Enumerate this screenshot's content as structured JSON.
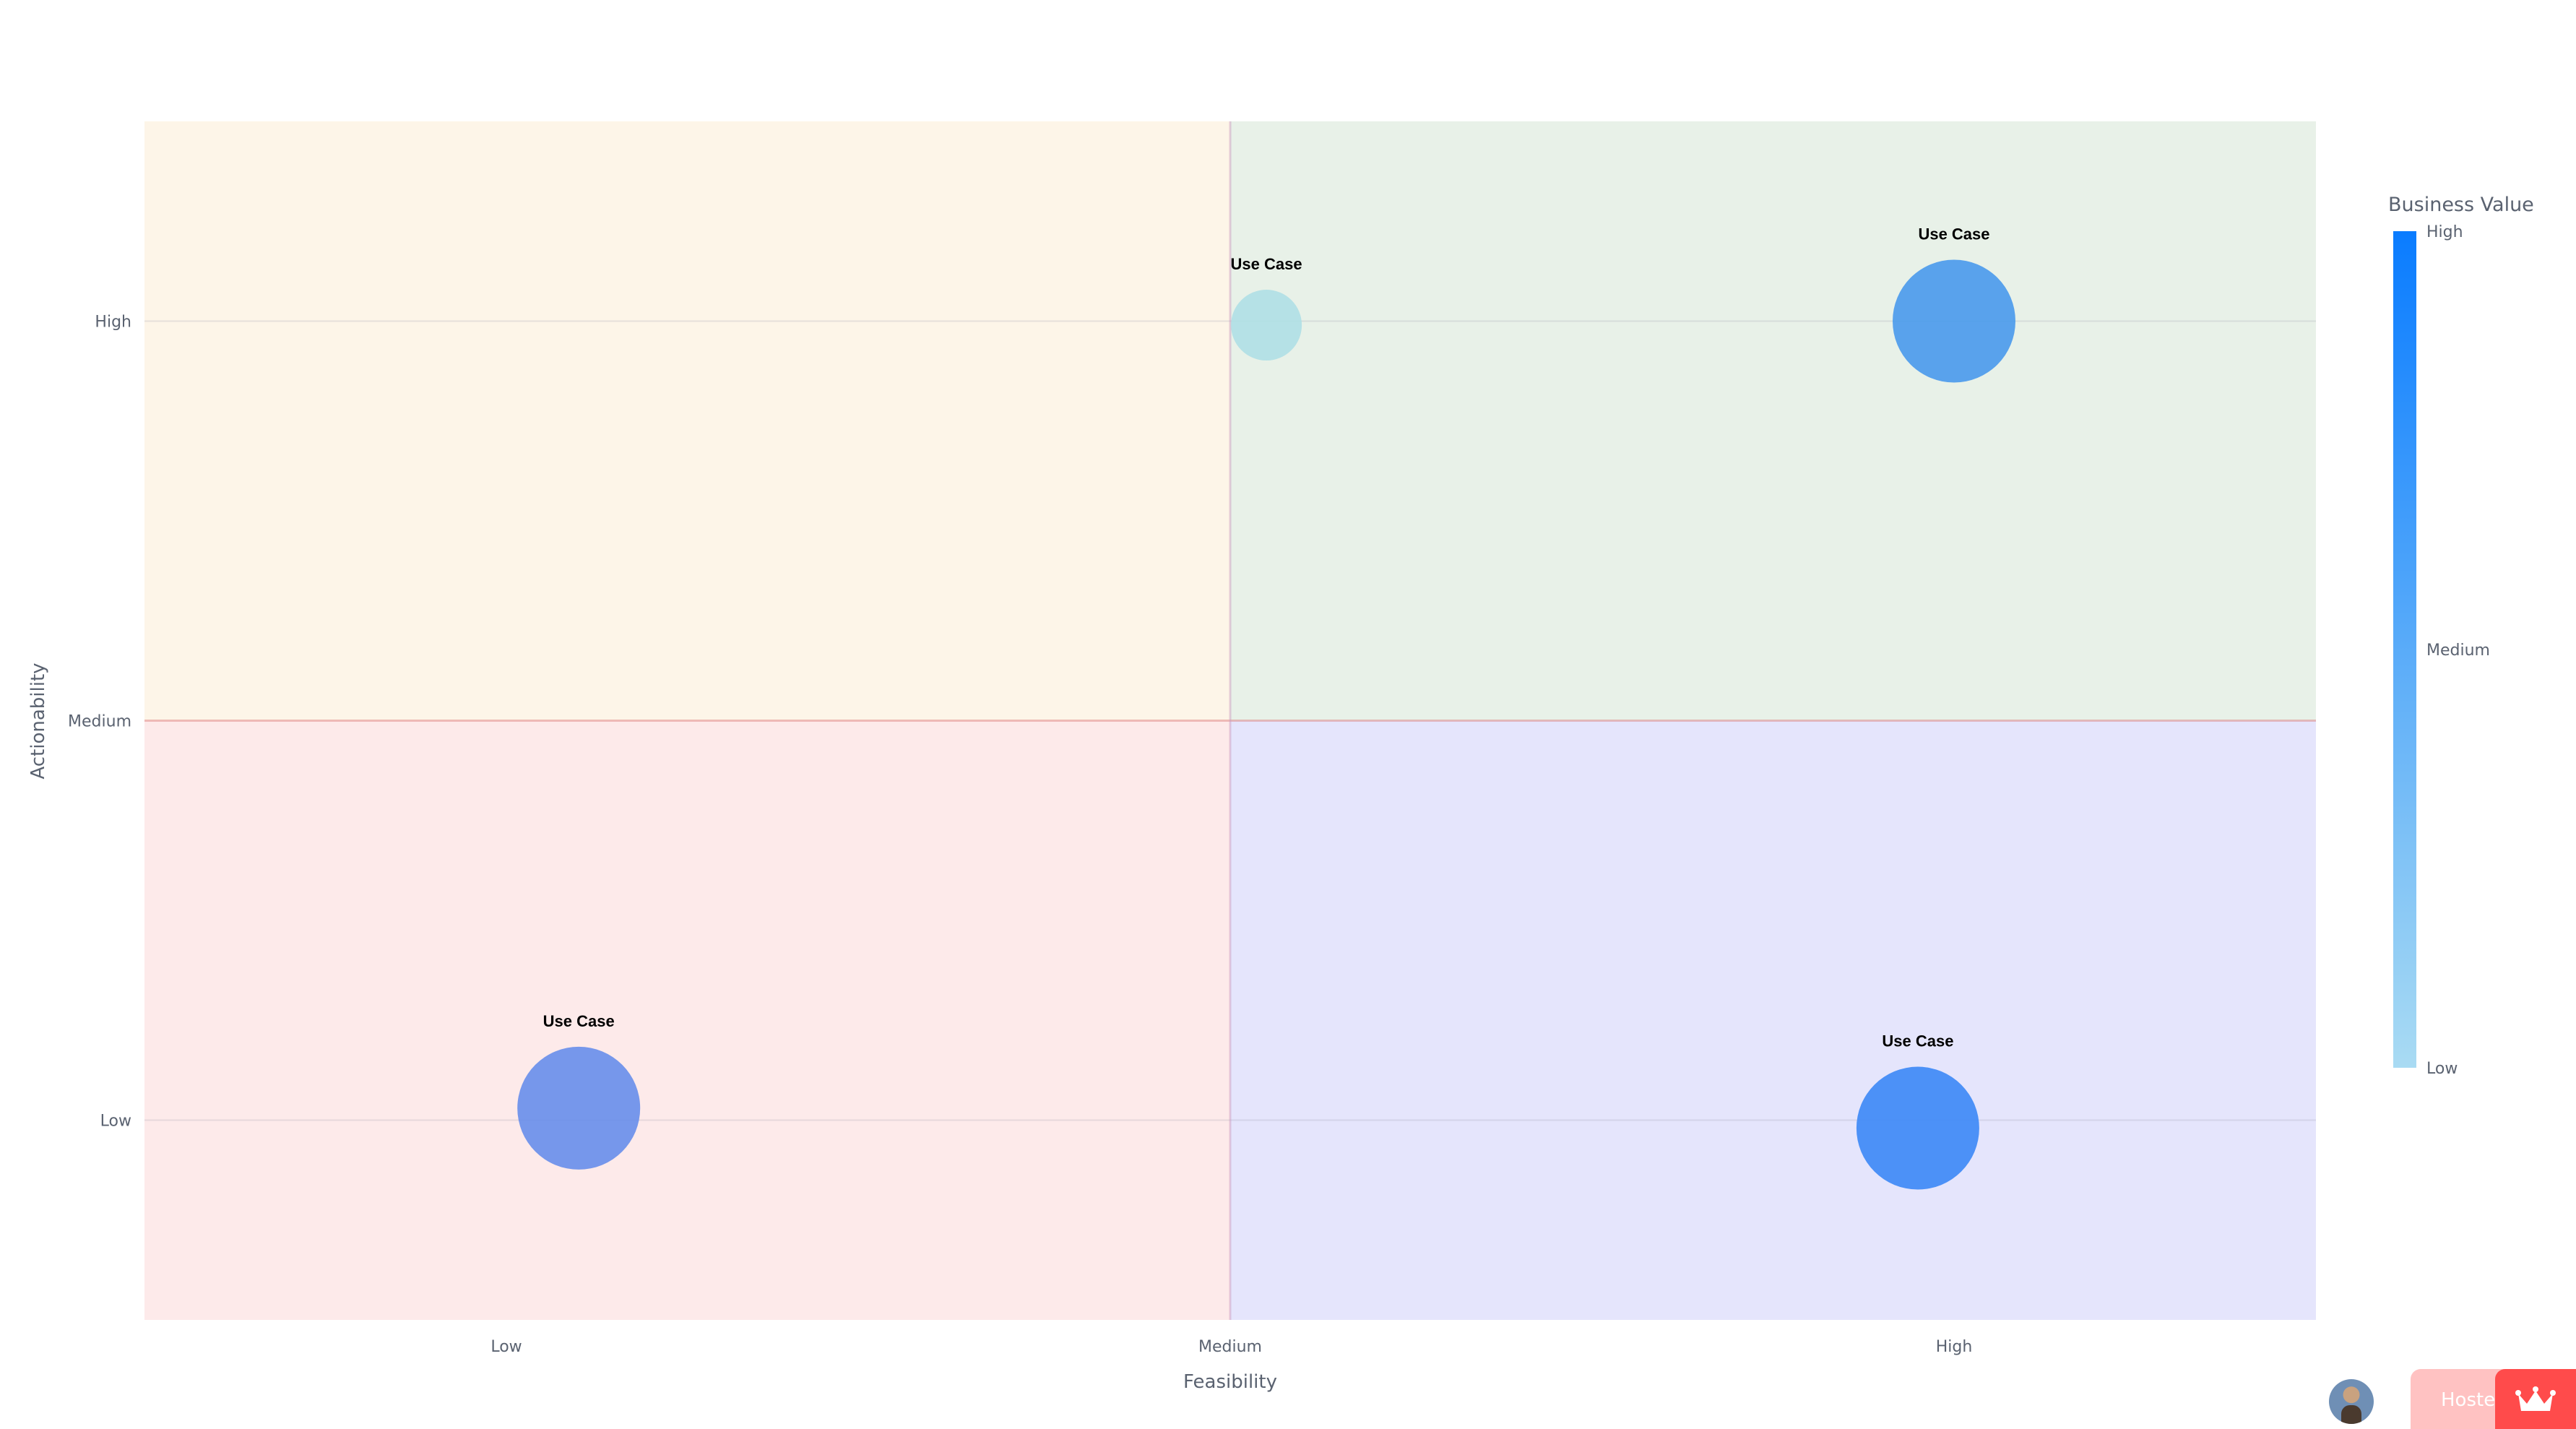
{
  "chart_data": {
    "type": "scatter",
    "xlabel": "Feasibility",
    "ylabel": "Actionability",
    "x_ticks": [
      {
        "value": 1,
        "label": "Low"
      },
      {
        "value": 2,
        "label": "Medium"
      },
      {
        "value": 3,
        "label": "High"
      }
    ],
    "y_ticks": [
      {
        "value": 1,
        "label": "Low"
      },
      {
        "value": 2,
        "label": "Medium"
      },
      {
        "value": 3,
        "label": "High"
      }
    ],
    "xlim": [
      0.5,
      3.5
    ],
    "ylim": [
      0.5,
      3.5
    ],
    "grid": true,
    "quadrants": [
      {
        "x": [
          0.5,
          2
        ],
        "y": [
          2,
          3.5
        ],
        "color": "#fdf5e8"
      },
      {
        "x": [
          2,
          3.5
        ],
        "y": [
          2,
          3.5
        ],
        "color": "#e8f1e8"
      },
      {
        "x": [
          0.5,
          2
        ],
        "y": [
          0.5,
          2
        ],
        "color": "#fdeaea"
      },
      {
        "x": [
          2,
          3.5
        ],
        "y": [
          0.5,
          2
        ],
        "color": "#e5e5fc"
      }
    ],
    "points": [
      {
        "label": "Use Case",
        "x": 2.05,
        "y": 2.99,
        "size": 1,
        "value": 0.02,
        "color": "#b0dfe5"
      },
      {
        "label": "Use Case",
        "x": 3.0,
        "y": 3.0,
        "size": 2,
        "value": 0.7,
        "color": "#4c9bec"
      },
      {
        "label": "Use Case",
        "x": 1.1,
        "y": 1.03,
        "size": 2,
        "value": 0.55,
        "color": "#6a8fea"
      },
      {
        "label": "Use Case",
        "x": 2.95,
        "y": 0.98,
        "size": 2,
        "value": 0.85,
        "color": "#3f8af6"
      }
    ],
    "colorbar": {
      "title": "Business Value",
      "ticks": [
        "High",
        "Medium",
        "Low"
      ],
      "colors": [
        "#0a7cff",
        "#a9dbf3"
      ]
    }
  },
  "badge": {
    "text": "Hosted with Streamlit",
    "crown_icon": "crown-icon"
  },
  "avatar": {
    "icon": "avatar"
  }
}
